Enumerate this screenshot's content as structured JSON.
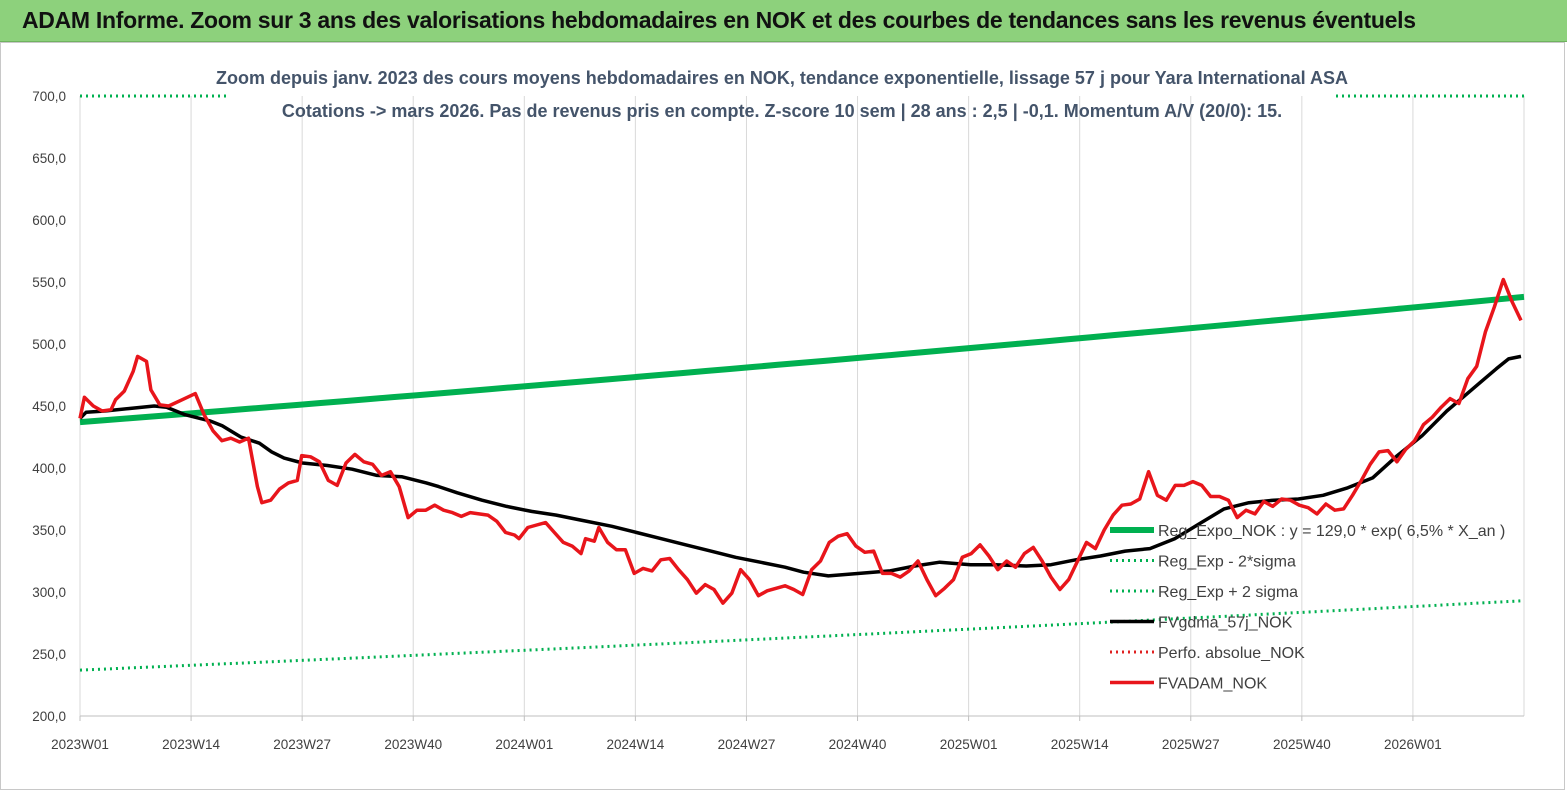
{
  "banner": {
    "title": "ADAM Informe. Zoom sur 3 ans des valorisations hebdomadaires en NOK et des courbes de tendances sans les revenus éventuels"
  },
  "colors": {
    "banner_bg": "#8dd17c",
    "reg_expo": "#00b050",
    "bands": "#00b050",
    "fvgdma": "#000000",
    "perfo": "#e02020",
    "fvadam": "#e8151b",
    "title_text": "#44546a"
  },
  "chart_data": {
    "type": "line",
    "title": "Zoom depuis janv. 2023 des cours moyens hebdomadaires en NOK, tendance exponentielle, lissage 57 j pour Yara International ASA",
    "subtitle": "Cotations -> mars 2026. Pas de revenus pris en compte. Z-score 10 sem | 28 ans : 2,5 | -0,1. Momentum A/V (20/0): 15.",
    "x_ticks": [
      "2023W01",
      "2023W14",
      "2023W27",
      "2023W40",
      "2024W01",
      "2024W14",
      "2024W27",
      "2024W40",
      "2025W01",
      "2025W14",
      "2025W27",
      "2025W40",
      "2026W01"
    ],
    "y_ticks": [
      "200,0",
      "250,0",
      "300,0",
      "350,0",
      "400,0",
      "450,0",
      "500,0",
      "550,0",
      "600,0",
      "650,0",
      "700,0"
    ],
    "ylim": [
      200,
      700
    ],
    "x_count": 168,
    "grid": "vertical",
    "legend_position": "bottom-right",
    "legend": [
      {
        "label": "Reg_Expo_NOK : y = 129,0 * exp( 6,5% * X_an )",
        "style": "solid-thick",
        "color": "#00b050"
      },
      {
        "label": "Reg_Exp - 2*sigma",
        "style": "dotted",
        "color": "#00b050"
      },
      {
        "label": "Reg_Exp + 2 sigma",
        "style": "dotted",
        "color": "#00b050"
      },
      {
        "label": "FVgdma_57j_NOK",
        "style": "solid",
        "color": "#000000"
      },
      {
        "label": "Perfo. absolue_NOK",
        "style": "dotted",
        "color": "#e02020"
      },
      {
        "label": "FVADAM_NOK",
        "style": "solid",
        "color": "#e8151b"
      }
    ],
    "series": [
      {
        "name": "Reg_Expo_NOK : y = 129,0 * exp( 6,5% * X_an )",
        "key": "reg_expo",
        "start": 437,
        "end": 538
      },
      {
        "name": "Reg_Exp - 2*sigma",
        "key": "reg_minus",
        "start": 237,
        "end": 293
      },
      {
        "name": "Reg_Exp + 2 sigma",
        "key": "reg_plus",
        "start": 700,
        "end": 700
      },
      {
        "name": "FVgdma_57j_NOK",
        "key": "fvgdma",
        "points": [
          [
            0,
            440
          ],
          [
            1,
            445
          ],
          [
            4,
            446
          ],
          [
            8,
            448
          ],
          [
            12,
            450
          ],
          [
            14,
            449
          ],
          [
            17,
            443
          ],
          [
            21,
            438
          ],
          [
            23,
            434
          ],
          [
            26,
            425
          ],
          [
            29,
            420
          ],
          [
            31,
            413
          ],
          [
            33,
            408
          ],
          [
            36,
            404
          ],
          [
            40,
            402
          ],
          [
            44,
            399
          ],
          [
            48,
            394
          ],
          [
            52,
            393
          ],
          [
            56,
            388
          ],
          [
            58,
            385
          ],
          [
            61,
            380
          ],
          [
            65,
            374
          ],
          [
            69,
            369
          ],
          [
            73,
            365
          ],
          [
            77,
            362
          ],
          [
            81,
            358
          ],
          [
            86,
            353
          ],
          [
            90,
            348
          ],
          [
            94,
            343
          ],
          [
            98,
            338
          ],
          [
            102,
            333
          ],
          [
            106,
            328
          ],
          [
            110,
            324
          ],
          [
            114,
            320
          ],
          [
            117,
            316
          ],
          [
            121,
            313
          ],
          [
            126,
            315
          ],
          [
            131,
            317
          ],
          [
            135,
            321
          ],
          [
            139,
            324
          ],
          [
            144,
            322
          ],
          [
            148,
            322
          ],
          [
            153,
            321
          ],
          [
            157,
            322
          ],
          [
            161,
            326
          ],
          [
            165,
            329
          ],
          [
            169,
            333
          ],
          [
            173,
            335
          ],
          [
            177,
            343
          ],
          [
            181,
            355
          ],
          [
            185,
            367
          ],
          [
            189,
            372
          ],
          [
            193,
            374
          ],
          [
            197,
            375
          ],
          [
            201,
            378
          ],
          [
            205,
            384
          ],
          [
            209,
            392
          ],
          [
            213,
            410
          ],
          [
            217,
            426
          ],
          [
            221,
            446
          ],
          [
            225,
            463
          ],
          [
            229,
            480
          ],
          [
            231,
            488
          ],
          [
            233,
            490
          ]
        ]
      },
      {
        "name": "FVADAM_NOK",
        "key": "fvadam",
        "points": [
          [
            0,
            440
          ],
          [
            1,
            457
          ],
          [
            3,
            450
          ],
          [
            5,
            446
          ],
          [
            7,
            447
          ],
          [
            8,
            455
          ],
          [
            10,
            462
          ],
          [
            12,
            478
          ],
          [
            13,
            490
          ],
          [
            15,
            486
          ],
          [
            16,
            463
          ],
          [
            18,
            451
          ],
          [
            20,
            450
          ],
          [
            23,
            455
          ],
          [
            26,
            460
          ],
          [
            28,
            443
          ],
          [
            30,
            430
          ],
          [
            32,
            422
          ],
          [
            34,
            424
          ],
          [
            36,
            421
          ],
          [
            38,
            424
          ],
          [
            40,
            385
          ],
          [
            41,
            372
          ],
          [
            43,
            374
          ],
          [
            45,
            383
          ],
          [
            47,
            388
          ],
          [
            49,
            390
          ],
          [
            50,
            410
          ],
          [
            52,
            409
          ],
          [
            54,
            405
          ],
          [
            56,
            390
          ],
          [
            58,
            386
          ],
          [
            60,
            404
          ],
          [
            62,
            411
          ],
          [
            64,
            405
          ],
          [
            66,
            403
          ],
          [
            68,
            394
          ],
          [
            70,
            397
          ],
          [
            72,
            385
          ],
          [
            74,
            360
          ],
          [
            76,
            366
          ],
          [
            78,
            366
          ],
          [
            80,
            370
          ],
          [
            82,
            366
          ],
          [
            84,
            364
          ],
          [
            86,
            361
          ],
          [
            88,
            364
          ],
          [
            90,
            363
          ],
          [
            92,
            362
          ],
          [
            94,
            357
          ],
          [
            96,
            348
          ],
          [
            98,
            346
          ],
          [
            99,
            343
          ],
          [
            101,
            352
          ],
          [
            103,
            354
          ],
          [
            105,
            356
          ],
          [
            107,
            348
          ],
          [
            109,
            340
          ],
          [
            111,
            337
          ],
          [
            113,
            331
          ],
          [
            114,
            343
          ],
          [
            116,
            341
          ],
          [
            117,
            352
          ],
          [
            119,
            340
          ],
          [
            121,
            334
          ],
          [
            123,
            334
          ],
          [
            125,
            315
          ],
          [
            127,
            319
          ],
          [
            129,
            317
          ],
          [
            131,
            326
          ],
          [
            133,
            327
          ],
          [
            135,
            318
          ],
          [
            137,
            310
          ],
          [
            139,
            299
          ],
          [
            141,
            306
          ],
          [
            143,
            302
          ],
          [
            145,
            291
          ],
          [
            147,
            299
          ],
          [
            149,
            318
          ],
          [
            151,
            310
          ],
          [
            153,
            297
          ],
          [
            155,
            301
          ],
          [
            157,
            303
          ],
          [
            159,
            305
          ],
          [
            161,
            302
          ],
          [
            163,
            298
          ],
          [
            165,
            318
          ],
          [
            167,
            325
          ],
          [
            169,
            340
          ],
          [
            171,
            345
          ],
          [
            173,
            347
          ],
          [
            175,
            337
          ],
          [
            177,
            332
          ],
          [
            179,
            333
          ],
          [
            181,
            315
          ],
          [
            183,
            315
          ],
          [
            185,
            312
          ],
          [
            187,
            317
          ],
          [
            189,
            325
          ],
          [
            191,
            310
          ],
          [
            193,
            297
          ],
          [
            195,
            303
          ],
          [
            197,
            310
          ],
          [
            199,
            328
          ],
          [
            201,
            331
          ],
          [
            203,
            338
          ],
          [
            205,
            329
          ],
          [
            207,
            318
          ],
          [
            209,
            325
          ],
          [
            211,
            320
          ],
          [
            213,
            331
          ],
          [
            215,
            336
          ],
          [
            217,
            325
          ],
          [
            219,
            312
          ],
          [
            221,
            302
          ],
          [
            223,
            310
          ],
          [
            225,
            325
          ],
          [
            227,
            340
          ],
          [
            229,
            335
          ],
          [
            231,
            350
          ],
          [
            233,
            362
          ],
          [
            235,
            370
          ],
          [
            237,
            371
          ],
          [
            239,
            375
          ],
          [
            241,
            397
          ],
          [
            243,
            378
          ],
          [
            245,
            374
          ],
          [
            247,
            386
          ],
          [
            249,
            386
          ],
          [
            251,
            389
          ],
          [
            253,
            386
          ],
          [
            255,
            377
          ],
          [
            257,
            377
          ],
          [
            259,
            374
          ],
          [
            261,
            360
          ],
          [
            263,
            366
          ],
          [
            265,
            363
          ],
          [
            267,
            373
          ],
          [
            269,
            369
          ],
          [
            271,
            375
          ],
          [
            273,
            374
          ],
          [
            275,
            370
          ],
          [
            277,
            368
          ],
          [
            279,
            363
          ],
          [
            281,
            371
          ],
          [
            283,
            366
          ],
          [
            285,
            367
          ],
          [
            287,
            378
          ],
          [
            289,
            390
          ],
          [
            291,
            403
          ],
          [
            293,
            413
          ],
          [
            295,
            414
          ],
          [
            297,
            405
          ],
          [
            299,
            415
          ],
          [
            301,
            422
          ],
          [
            303,
            435
          ],
          [
            305,
            441
          ],
          [
            307,
            449
          ],
          [
            309,
            456
          ],
          [
            311,
            452
          ],
          [
            313,
            472
          ],
          [
            315,
            482
          ],
          [
            317,
            510
          ],
          [
            319,
            530
          ],
          [
            321,
            552
          ],
          [
            323,
            534
          ],
          [
            325,
            519
          ]
        ]
      }
    ]
  }
}
